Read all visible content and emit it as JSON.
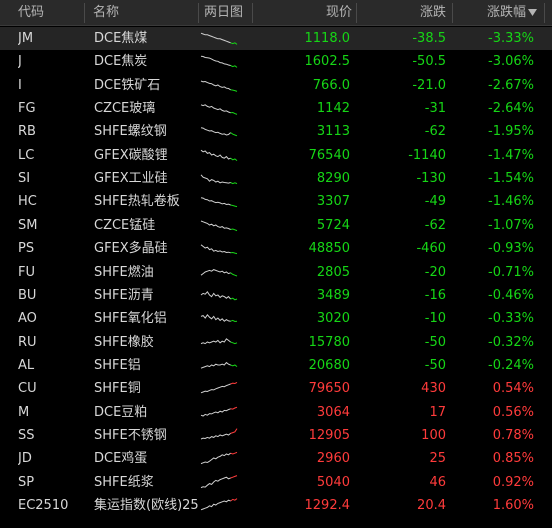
{
  "colors": {
    "up": "#ff3b3b",
    "down": "#16d616",
    "neutral": "#d8d8d8",
    "header_bg": "#2a2a2a",
    "selected_row_bg": "#252525"
  },
  "header": {
    "code": "代码",
    "name": "名称",
    "chart": "两日图",
    "price": "现价",
    "change": "涨跌",
    "pct": "涨跌幅",
    "sort_icon": "sort-down-icon"
  },
  "rows": [
    {
      "code": "JM",
      "name": "DCE焦煤",
      "price": "1118.0",
      "change": "-38.5",
      "pct": "-3.33%",
      "dir": "down",
      "spark": [
        0.2,
        0.25,
        0.3,
        0.3,
        0.35,
        0.4,
        0.45,
        0.5,
        0.55,
        0.55,
        0.6,
        0.65,
        0.7,
        0.75,
        0.8,
        0.85,
        0.8,
        0.9
      ]
    },
    {
      "code": "J",
      "name": "DCE焦炭",
      "price": "1602.5",
      "change": "-50.5",
      "pct": "-3.06%",
      "dir": "down",
      "spark": [
        0.2,
        0.22,
        0.28,
        0.3,
        0.32,
        0.38,
        0.45,
        0.5,
        0.52,
        0.6,
        0.62,
        0.68,
        0.7,
        0.75,
        0.78,
        0.85,
        0.8,
        0.9
      ]
    },
    {
      "code": "I",
      "name": "DCE铁矿石",
      "price": "766.0",
      "change": "-21.0",
      "pct": "-2.67%",
      "dir": "down",
      "spark": [
        0.25,
        0.3,
        0.28,
        0.35,
        0.4,
        0.42,
        0.5,
        0.55,
        0.5,
        0.6,
        0.65,
        0.62,
        0.7,
        0.72,
        0.8,
        0.82,
        0.85,
        0.9
      ]
    },
    {
      "code": "FG",
      "name": "CZCE玻璃",
      "price": "1142",
      "change": "-31",
      "pct": "-2.64%",
      "dir": "down",
      "spark": [
        0.3,
        0.35,
        0.3,
        0.4,
        0.45,
        0.4,
        0.5,
        0.55,
        0.6,
        0.55,
        0.65,
        0.7,
        0.68,
        0.75,
        0.8,
        0.78,
        0.85,
        0.9
      ]
    },
    {
      "code": "RB",
      "name": "SHFE螺纹钢",
      "price": "3113",
      "change": "-62",
      "pct": "-1.95%",
      "dir": "down",
      "spark": [
        0.3,
        0.32,
        0.4,
        0.45,
        0.5,
        0.48,
        0.55,
        0.6,
        0.58,
        0.65,
        0.7,
        0.68,
        0.75,
        0.72,
        0.6,
        0.7,
        0.75,
        0.8
      ]
    },
    {
      "code": "LC",
      "name": "GFEX碳酸锂",
      "price": "76540",
      "change": "-1140",
      "pct": "-1.47%",
      "dir": "down",
      "spark": [
        0.2,
        0.3,
        0.25,
        0.4,
        0.35,
        0.5,
        0.45,
        0.55,
        0.6,
        0.5,
        0.65,
        0.7,
        0.6,
        0.75,
        0.7,
        0.8,
        0.75,
        0.85
      ]
    },
    {
      "code": "SI",
      "name": "GFEX工业硅",
      "price": "8290",
      "change": "-130",
      "pct": "-1.54%",
      "dir": "down",
      "spark": [
        0.3,
        0.45,
        0.5,
        0.55,
        0.7,
        0.6,
        0.65,
        0.75,
        0.7,
        0.8,
        0.75,
        0.78,
        0.8,
        0.82,
        0.78,
        0.85,
        0.8,
        0.85
      ]
    },
    {
      "code": "HC",
      "name": "SHFE热轧卷板",
      "price": "3307",
      "change": "-49",
      "pct": "-1.46%",
      "dir": "down",
      "spark": [
        0.3,
        0.32,
        0.4,
        0.42,
        0.5,
        0.48,
        0.55,
        0.6,
        0.58,
        0.62,
        0.68,
        0.65,
        0.72,
        0.7,
        0.75,
        0.78,
        0.82,
        0.85
      ]
    },
    {
      "code": "SM",
      "name": "CZCE锰硅",
      "price": "5724",
      "change": "-62",
      "pct": "-1.07%",
      "dir": "down",
      "spark": [
        0.25,
        0.3,
        0.35,
        0.4,
        0.5,
        0.45,
        0.55,
        0.5,
        0.6,
        0.65,
        0.6,
        0.7,
        0.68,
        0.72,
        0.78,
        0.75,
        0.8,
        0.85
      ]
    },
    {
      "code": "PS",
      "name": "GFEX多晶硅",
      "price": "48850",
      "change": "-460",
      "pct": "-0.93%",
      "dir": "down",
      "spark": [
        0.3,
        0.4,
        0.5,
        0.45,
        0.6,
        0.55,
        0.7,
        0.65,
        0.72,
        0.68,
        0.75,
        0.72,
        0.78,
        0.76,
        0.8,
        0.78,
        0.82,
        0.85
      ]
    },
    {
      "code": "FU",
      "name": "SHFE燃油",
      "price": "2805",
      "change": "-20",
      "pct": "-0.71%",
      "dir": "down",
      "spark": [
        0.7,
        0.6,
        0.5,
        0.45,
        0.4,
        0.45,
        0.35,
        0.4,
        0.45,
        0.5,
        0.45,
        0.55,
        0.5,
        0.6,
        0.55,
        0.65,
        0.7,
        0.75
      ]
    },
    {
      "code": "BU",
      "name": "SHFE沥青",
      "price": "3489",
      "change": "-16",
      "pct": "-0.46%",
      "dir": "down",
      "spark": [
        0.5,
        0.4,
        0.45,
        0.3,
        0.5,
        0.6,
        0.4,
        0.55,
        0.5,
        0.65,
        0.55,
        0.6,
        0.7,
        0.6,
        0.75,
        0.7,
        0.8,
        0.75
      ]
    },
    {
      "code": "AO",
      "name": "SHFE氧化铝",
      "price": "3020",
      "change": "-10",
      "pct": "-0.33%",
      "dir": "down",
      "spark": [
        0.4,
        0.35,
        0.5,
        0.3,
        0.45,
        0.55,
        0.4,
        0.6,
        0.5,
        0.65,
        0.55,
        0.7,
        0.6,
        0.68,
        0.7,
        0.65,
        0.72,
        0.7
      ]
    },
    {
      "code": "RU",
      "name": "SHFE橡胶",
      "price": "15780",
      "change": "-50",
      "pct": "-0.32%",
      "dir": "down",
      "spark": [
        0.6,
        0.55,
        0.6,
        0.5,
        0.55,
        0.5,
        0.45,
        0.5,
        0.4,
        0.55,
        0.45,
        0.5,
        0.3,
        0.4,
        0.5,
        0.55,
        0.6,
        0.55
      ]
    },
    {
      "code": "AL",
      "name": "SHFE铝",
      "price": "20680",
      "change": "-50",
      "pct": "-0.24%",
      "dir": "down",
      "spark": [
        0.7,
        0.65,
        0.6,
        0.55,
        0.6,
        0.5,
        0.55,
        0.45,
        0.5,
        0.5,
        0.45,
        0.5,
        0.35,
        0.45,
        0.5,
        0.55,
        0.5,
        0.6
      ]
    },
    {
      "code": "CU",
      "name": "SHFE铜",
      "price": "79650",
      "change": "430",
      "pct": "0.54%",
      "dir": "up",
      "spark": [
        0.8,
        0.75,
        0.7,
        0.72,
        0.65,
        0.6,
        0.62,
        0.55,
        0.5,
        0.45,
        0.4,
        0.42,
        0.35,
        0.3,
        0.25,
        0.2,
        0.22,
        0.15
      ]
    },
    {
      "code": "M",
      "name": "DCE豆粕",
      "price": "3064",
      "change": "17",
      "pct": "0.56%",
      "dir": "up",
      "spark": [
        0.7,
        0.75,
        0.65,
        0.7,
        0.6,
        0.62,
        0.55,
        0.5,
        0.55,
        0.45,
        0.5,
        0.4,
        0.42,
        0.35,
        0.3,
        0.32,
        0.25,
        0.2
      ]
    },
    {
      "code": "SS",
      "name": "SHFE不锈钢",
      "price": "12905",
      "change": "100",
      "pct": "0.78%",
      "dir": "up",
      "spark": [
        0.75,
        0.7,
        0.72,
        0.65,
        0.7,
        0.6,
        0.65,
        0.55,
        0.6,
        0.5,
        0.55,
        0.5,
        0.45,
        0.5,
        0.4,
        0.35,
        0.3,
        0.1
      ]
    },
    {
      "code": "JD",
      "name": "DCE鸡蛋",
      "price": "2960",
      "change": "25",
      "pct": "0.85%",
      "dir": "up",
      "spark": [
        0.85,
        0.8,
        0.75,
        0.78,
        0.7,
        0.6,
        0.5,
        0.55,
        0.45,
        0.4,
        0.3,
        0.35,
        0.25,
        0.3,
        0.2,
        0.25,
        0.2,
        0.15
      ]
    },
    {
      "code": "SP",
      "name": "SHFE纸浆",
      "price": "5040",
      "change": "46",
      "pct": "0.92%",
      "dir": "up",
      "spark": [
        0.85,
        0.8,
        0.82,
        0.7,
        0.6,
        0.65,
        0.5,
        0.4,
        0.45,
        0.35,
        0.3,
        0.25,
        0.2,
        0.3,
        0.25,
        0.2,
        0.15,
        0.1
      ]
    },
    {
      "code": "EC2510",
      "name": "集运指数(欧线)25",
      "price": "1292.4",
      "change": "20.4",
      "pct": "1.60%",
      "dir": "up",
      "spark": [
        0.8,
        0.75,
        0.7,
        0.65,
        0.55,
        0.6,
        0.45,
        0.5,
        0.4,
        0.35,
        0.3,
        0.25,
        0.3,
        0.2,
        0.25,
        0.15,
        0.2,
        0.1
      ]
    }
  ]
}
